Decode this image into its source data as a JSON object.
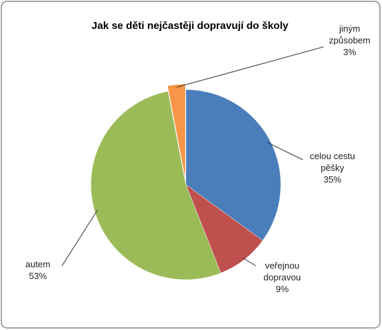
{
  "chart_data": {
    "type": "pie",
    "title": "Jak se děti nejčastěji dopravují do školy",
    "categories": [
      "celou cestu pěšky",
      "veřejnou dopravou",
      "autem",
      "jiným způsobem"
    ],
    "values": [
      35,
      9,
      53,
      3
    ],
    "value_labels": [
      "35%",
      "9%",
      "53%",
      "3%"
    ],
    "colors": [
      "#4a7ebb",
      "#c0504d",
      "#9bbb59",
      "#f79646"
    ]
  }
}
